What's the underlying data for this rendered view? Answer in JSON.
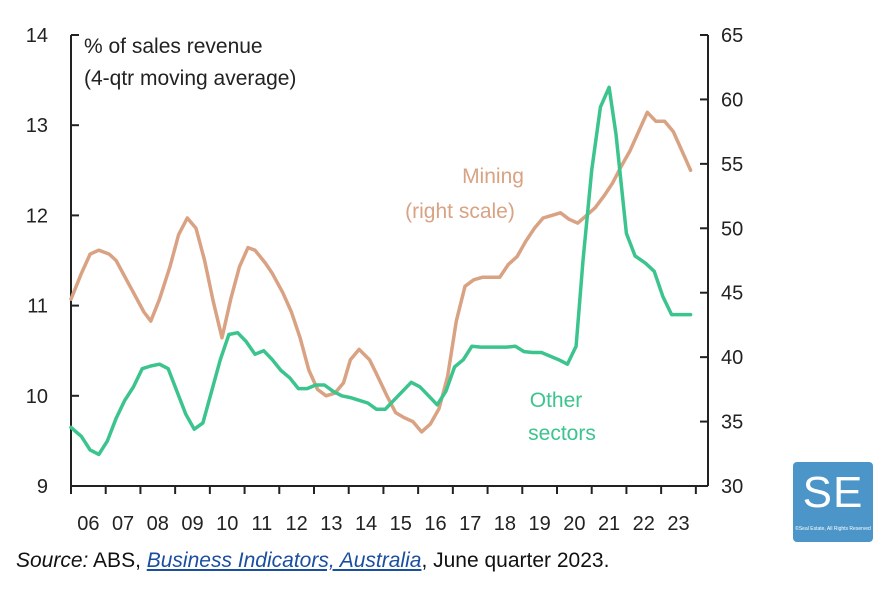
{
  "chart_data": {
    "type": "line",
    "title": "% of sales revenue",
    "subtitle": "(4-qtr moving average)",
    "x_tick_labels": [
      "06",
      "07",
      "08",
      "09",
      "10",
      "11",
      "12",
      "13",
      "14",
      "15",
      "16",
      "17",
      "18",
      "19",
      "20",
      "21",
      "22",
      "23"
    ],
    "left_axis": {
      "ylim": [
        9,
        14
      ],
      "ticks": [
        "14",
        "13",
        "12",
        "11",
        "10",
        "9"
      ]
    },
    "right_axis": {
      "ylim": [
        30,
        65
      ],
      "ticks": [
        "65",
        "60",
        "55",
        "50",
        "45",
        "40",
        "35",
        "30"
      ]
    },
    "x_range": [
      2005.5,
      2023.85
    ],
    "grid": false,
    "series": [
      {
        "name": "Mining",
        "label_lines": [
          "Mining",
          "(right scale)"
        ],
        "axis": "right",
        "color": "#d9a283",
        "x": [
          2005.5,
          2005.8,
          2006.05,
          2006.3,
          2006.6,
          2006.8,
          2007.1,
          2007.3,
          2007.6,
          2007.8,
          2008.05,
          2008.35,
          2008.6,
          2008.85,
          2009.1,
          2009.35,
          2009.6,
          2009.85,
          2010.1,
          2010.35,
          2010.6,
          2010.8,
          2011.1,
          2011.3,
          2011.6,
          2011.85,
          2012.1,
          2012.35,
          2012.6,
          2012.85,
          2013.1,
          2013.35,
          2013.55,
          2013.8,
          2014.1,
          2014.3,
          2014.6,
          2014.85,
          2015.1,
          2015.35,
          2015.6,
          2015.85,
          2016.1,
          2016.35,
          2016.6,
          2016.85,
          2017.1,
          2017.35,
          2017.6,
          2017.85,
          2018.1,
          2018.35,
          2018.6,
          2018.85,
          2019.1,
          2019.35,
          2019.6,
          2019.85,
          2020.1,
          2020.35,
          2020.6,
          2020.85,
          2021.1,
          2021.35,
          2021.6,
          2021.85,
          2022.1,
          2022.35,
          2022.6,
          2022.85,
          2023.1,
          2023.35
        ],
        "values": [
          44.5,
          46.5,
          48,
          48.3,
          48,
          47.5,
          46,
          45,
          43.5,
          42.8,
          44.5,
          47,
          49.5,
          50.8,
          50,
          47.5,
          44.3,
          41.5,
          44.5,
          47,
          48.5,
          48.3,
          47.3,
          46.5,
          45,
          43.5,
          41.5,
          39,
          37.5,
          37,
          37.2,
          38,
          39.8,
          40.6,
          39.8,
          38.7,
          37,
          35.7,
          35.3,
          35,
          34.2,
          34.8,
          36,
          38.5,
          42.8,
          45.5,
          46,
          46.2,
          46.2,
          46.2,
          47.2,
          47.8,
          49,
          50,
          50.8,
          51,
          51.2,
          50.7,
          50.4,
          51,
          51.6,
          52.5,
          53.5,
          54.8,
          56,
          57.5,
          59,
          58.3,
          58.3,
          57.5,
          56,
          54.5
        ]
      },
      {
        "name": "Other sectors",
        "label_lines": [
          "Other",
          "sectors"
        ],
        "axis": "left",
        "color": "#3cc48e",
        "x": [
          2005.5,
          2005.8,
          2006.05,
          2006.3,
          2006.55,
          2006.8,
          2007.05,
          2007.3,
          2007.55,
          2007.8,
          2008.05,
          2008.3,
          2008.55,
          2008.8,
          2009.05,
          2009.3,
          2009.55,
          2009.8,
          2010.05,
          2010.3,
          2010.55,
          2010.8,
          2011.05,
          2011.3,
          2011.55,
          2011.8,
          2012.05,
          2012.3,
          2012.55,
          2012.8,
          2013.05,
          2013.3,
          2013.55,
          2013.8,
          2014.05,
          2014.3,
          2014.55,
          2014.8,
          2015.05,
          2015.3,
          2015.55,
          2015.8,
          2016.05,
          2016.3,
          2016.55,
          2016.8,
          2017.05,
          2017.3,
          2017.55,
          2017.8,
          2018.05,
          2018.3,
          2018.55,
          2018.8,
          2019.05,
          2019.3,
          2019.55,
          2019.8,
          2020.05,
          2020.25,
          2020.5,
          2020.75,
          2021.0,
          2021.2,
          2021.5,
          2021.75,
          2022.05,
          2022.3,
          2022.55,
          2022.8,
          2023.05,
          2023.35
        ],
        "values": [
          9.65,
          9.55,
          9.4,
          9.35,
          9.5,
          9.75,
          9.95,
          10.1,
          10.3,
          10.33,
          10.35,
          10.3,
          10.05,
          9.8,
          9.63,
          9.7,
          10.05,
          10.4,
          10.68,
          10.7,
          10.6,
          10.46,
          10.5,
          10.4,
          10.28,
          10.2,
          10.08,
          10.08,
          10.12,
          10.12,
          10.05,
          10.0,
          9.98,
          9.95,
          9.92,
          9.85,
          9.85,
          9.95,
          10.05,
          10.15,
          10.1,
          10.0,
          9.9,
          10.05,
          10.32,
          10.4,
          10.55,
          10.54,
          10.54,
          10.54,
          10.54,
          10.55,
          10.49,
          10.48,
          10.48,
          10.44,
          10.4,
          10.35,
          10.55,
          11.5,
          12.5,
          13.2,
          13.42,
          12.9,
          11.8,
          11.55,
          11.47,
          11.38,
          11.1,
          10.9,
          10.9,
          10.9
        ]
      }
    ]
  },
  "source": {
    "prefix": "Source:",
    "publisher": " ABS, ",
    "link_text": "Business Indicators, Australia",
    "suffix": ", June quarter 2023."
  },
  "logo": {
    "text": "SE",
    "small_text": "©Seal Estate, All Rights Reserved"
  }
}
